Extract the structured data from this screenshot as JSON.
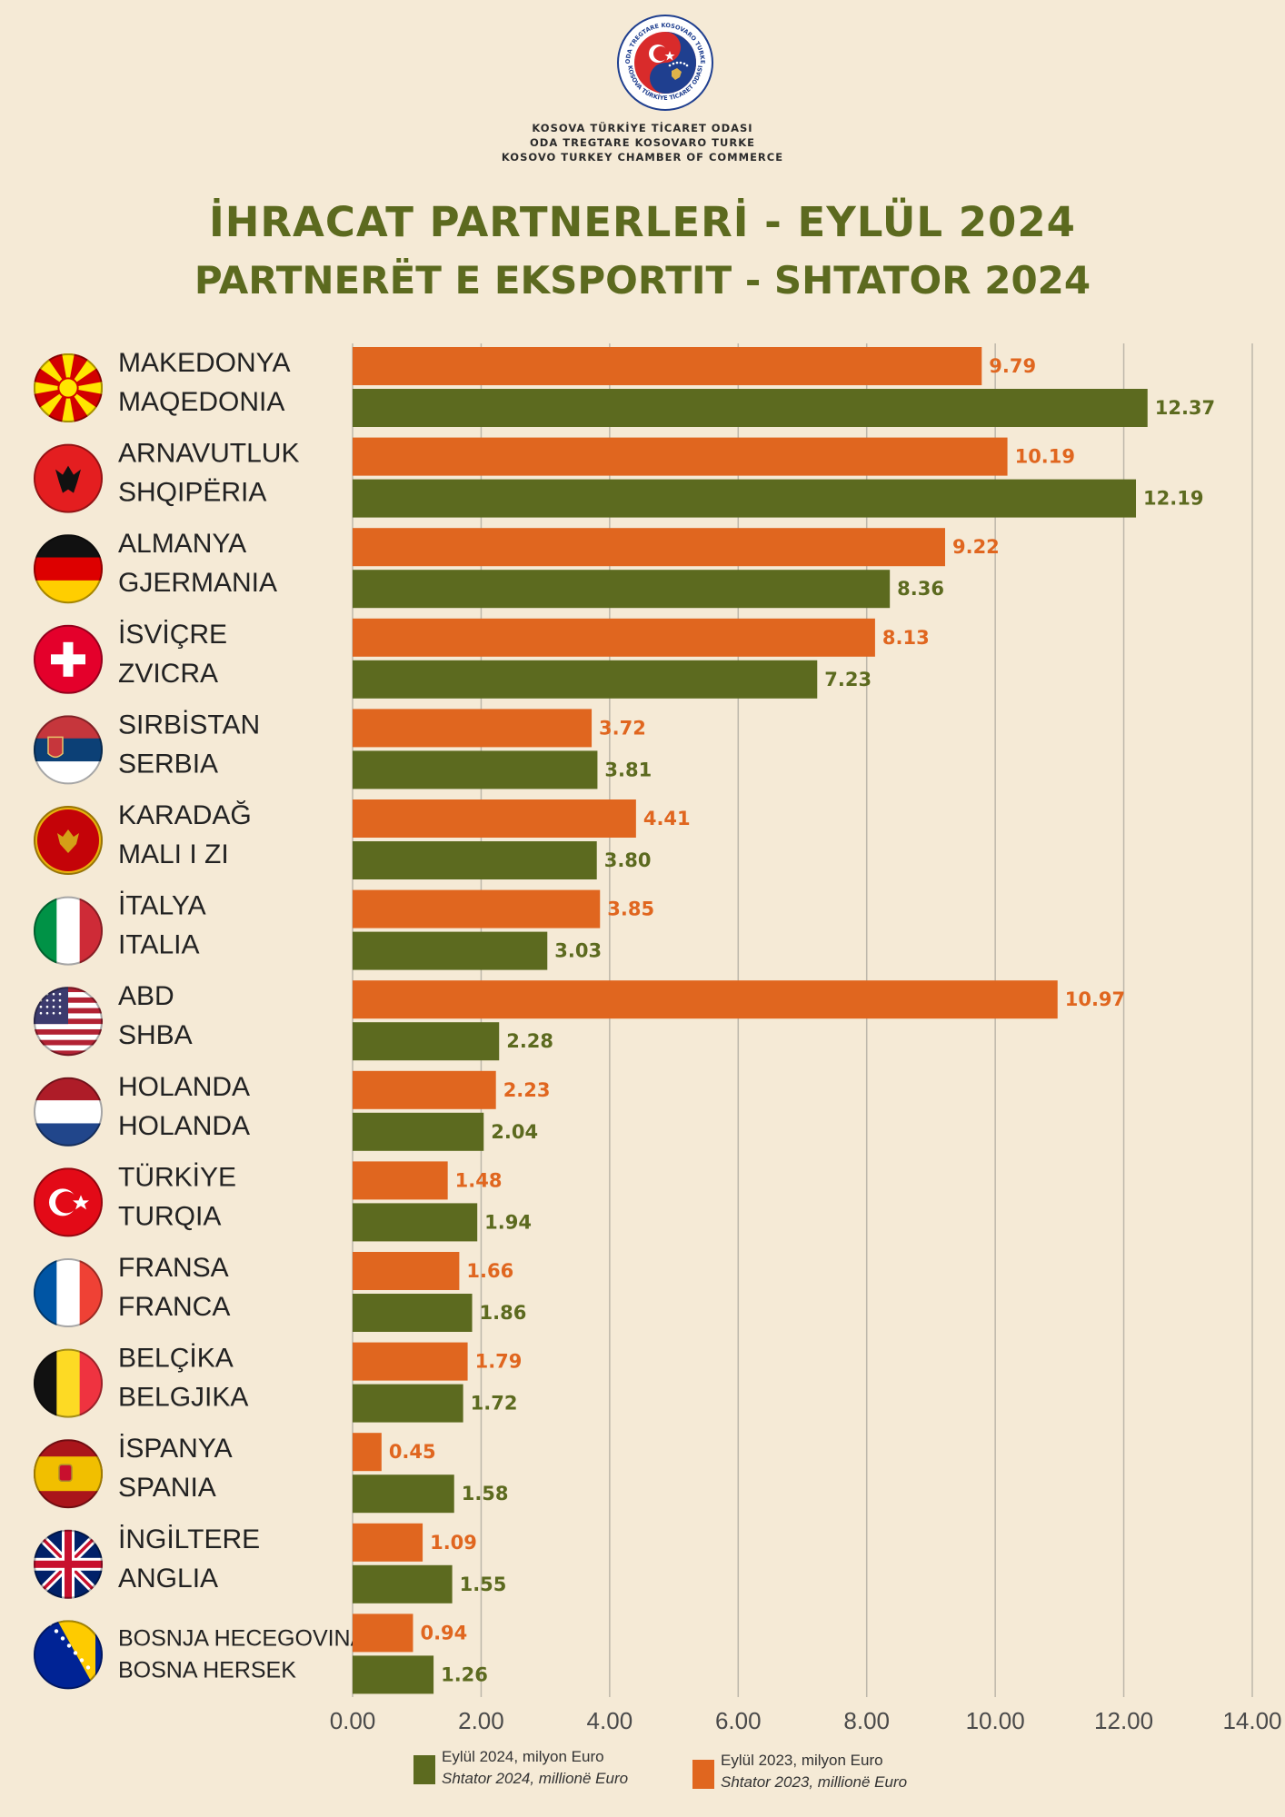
{
  "header": {
    "org_lines": [
      "KOSOVA TÜRKİYE TİCARET ODASI",
      "ODA TREGTARE KOSOVARO TURKE",
      "KOSOVO TURKEY CHAMBER OF COMMERCE"
    ],
    "logo_ring_text_top": "ODA TREGTARE KOSOVARO TURKE",
    "logo_ring_text_bottom": "KOSOVA TÜRKİYE TİCARET ODASI",
    "title_line1": "İHRACAT PARTNERLERİ - EYLÜL 2024",
    "title_line2": "PARTNERËT E EKSPORTIT - SHTATOR 2024"
  },
  "colors": {
    "background": "#f5ead6",
    "title": "#5c6a1f",
    "series_2023": "#e0661f",
    "series_2024": "#5c6a1f",
    "gridline": "#bdb7aa"
  },
  "legend": {
    "s2024_line1": "Eylül 2024, milyon Euro",
    "s2024_line2": "Shtator 2024, millionë Euro",
    "s2023_line1": "Eylül  2023, milyon Euro",
    "s2023_line2": "Shtator 2023, millionë Euro"
  },
  "chart_data": {
    "type": "bar",
    "orientation": "horizontal",
    "xlim": [
      0,
      14
    ],
    "xticks": [
      "0.00",
      "2.00",
      "4.00",
      "6.00",
      "8.00",
      "10.00",
      "12.00",
      "14.00"
    ],
    "grid": true,
    "categories": [
      {
        "tr": "MAKEDONYA",
        "sq": "MAQEDONIA",
        "flag": "north-macedonia-flag"
      },
      {
        "tr": "ARNAVUTLUK",
        "sq": "SHQIPËRIA",
        "flag": "albania-flag"
      },
      {
        "tr": "ALMANYA",
        "sq": "GJERMANIA",
        "flag": "germany-flag"
      },
      {
        "tr": "İSVİÇRE",
        "sq": "ZVICRA",
        "flag": "switzerland-flag"
      },
      {
        "tr": "SIRBİSTAN",
        "sq": "SERBIA",
        "flag": "serbia-flag"
      },
      {
        "tr": "KARADAĞ",
        "sq": "MALI I ZI",
        "flag": "montenegro-flag"
      },
      {
        "tr": "İTALYA",
        "sq": "ITALIA",
        "flag": "italy-flag"
      },
      {
        "tr": "ABD",
        "sq": "SHBA",
        "flag": "usa-flag"
      },
      {
        "tr": "HOLANDA",
        "sq": "HOLANDA",
        "flag": "netherlands-flag"
      },
      {
        "tr": "TÜRKİYE",
        "sq": "TURQIA",
        "flag": "turkey-flag"
      },
      {
        "tr": "FRANSA",
        "sq": "FRANCA",
        "flag": "france-flag"
      },
      {
        "tr": "BELÇİKA",
        "sq": "BELGJIKA",
        "flag": "belgium-flag"
      },
      {
        "tr": "İSPANYA",
        "sq": "SPANIA",
        "flag": "spain-flag"
      },
      {
        "tr": "İNGİLTERE",
        "sq": "ANGLIA",
        "flag": "uk-flag"
      },
      {
        "tr": "BOSNJA HECEGOVINA",
        "sq": "BOSNA HERSEK",
        "flag": "bosnia-flag"
      }
    ],
    "series": [
      {
        "name": "Eylül  2023, milyon Euro",
        "key": "s2023",
        "values": [
          9.79,
          10.19,
          9.22,
          8.13,
          3.72,
          4.41,
          3.85,
          10.97,
          2.23,
          1.48,
          1.66,
          1.79,
          0.45,
          1.09,
          0.94
        ],
        "labels": [
          "9.79",
          "10.19",
          "9.22",
          "8.13",
          "3.72",
          "4.41",
          "3.85",
          "10.97",
          "2.23",
          "1.48",
          "1.66",
          "1.79",
          "0.45",
          "1.09",
          "0.94"
        ]
      },
      {
        "name": "Eylül 2024, milyon Euro",
        "key": "s2024",
        "values": [
          12.37,
          12.19,
          8.36,
          7.23,
          3.81,
          3.8,
          3.03,
          2.28,
          2.04,
          1.94,
          1.86,
          1.72,
          1.58,
          1.55,
          1.26
        ],
        "labels": [
          "12.37",
          "12.19",
          "8.36",
          "7.23",
          "3.81",
          "3.80",
          "3.03",
          "2.28",
          "2.04",
          "1.94",
          "1.86",
          "1.72",
          "1.58",
          "1.55",
          "1.26"
        ]
      }
    ]
  }
}
